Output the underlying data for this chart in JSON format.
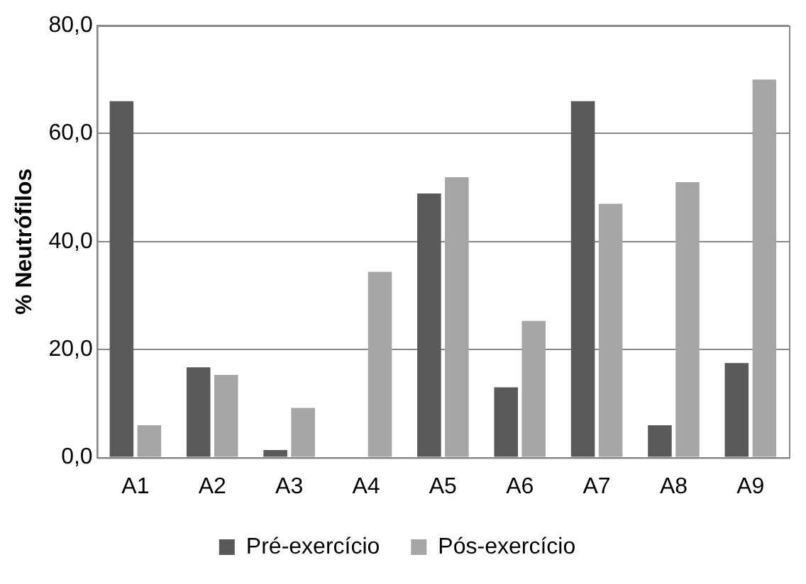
{
  "chart_data": {
    "type": "bar",
    "ylabel": "% Neutrófilos",
    "categories": [
      "A1",
      "A2",
      "A3",
      "A4",
      "A5",
      "A6",
      "A7",
      "A8",
      "A9"
    ],
    "series": [
      {
        "name": "Pré-exercício",
        "color": "#595959",
        "values": [
          66,
          16.7,
          1.4,
          0,
          48.9,
          13,
          66,
          6,
          17.5
        ]
      },
      {
        "name": "Pós-exercício",
        "color": "#a6a6a6",
        "values": [
          6,
          15.3,
          9.2,
          34.4,
          51.9,
          25.3,
          47,
          51,
          70
        ]
      }
    ],
    "ylim": [
      0,
      80
    ],
    "yticks": [
      {
        "value": 0,
        "label": "0,0"
      },
      {
        "value": 20,
        "label": "20,0"
      },
      {
        "value": 40,
        "label": "40,0"
      },
      {
        "value": 60,
        "label": "60,0"
      },
      {
        "value": 80,
        "label": "80,0"
      }
    ],
    "grid": "y",
    "legend": "bottom"
  }
}
